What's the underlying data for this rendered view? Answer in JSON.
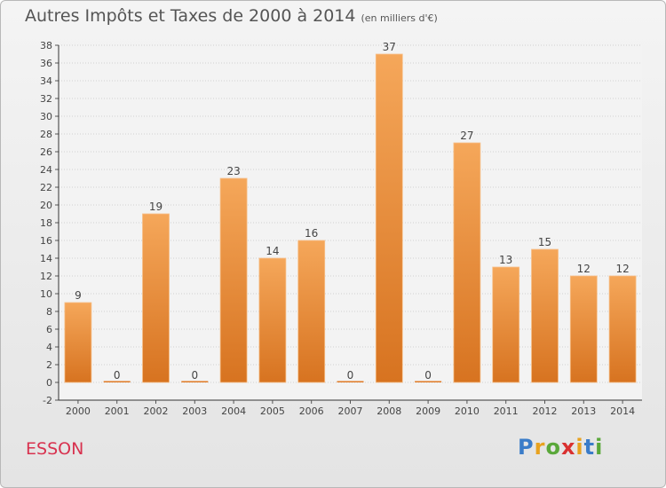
{
  "title": "Autres Impôts et Taxes de 2000 à 2014",
  "unit": "(en milliers d'€)",
  "commune": "ESSON",
  "logo": {
    "letters": [
      "P",
      "r",
      "o",
      "x",
      "i",
      "t",
      "i"
    ],
    "colors": [
      "#3a7cc9",
      "#e8a21f",
      "#5aa83a",
      "#d93030",
      "#e8a21f",
      "#3a7cc9",
      "#5aa83a"
    ]
  },
  "chart_data": {
    "type": "bar",
    "categories": [
      "2000",
      "2001",
      "2002",
      "2003",
      "2004",
      "2005",
      "2006",
      "2007",
      "2008",
      "2009",
      "2010",
      "2011",
      "2012",
      "2013",
      "2014"
    ],
    "values": [
      9,
      0,
      19,
      0,
      23,
      14,
      16,
      0,
      37,
      0,
      27,
      13,
      15,
      12,
      12
    ],
    "ylim": [
      -2,
      38
    ],
    "yticks": [
      -2,
      0,
      2,
      4,
      6,
      8,
      10,
      12,
      14,
      16,
      18,
      20,
      22,
      24,
      26,
      28,
      30,
      32,
      34,
      36,
      38
    ],
    "grid": true,
    "bar_color": "#f0923a",
    "data_labels": true
  }
}
